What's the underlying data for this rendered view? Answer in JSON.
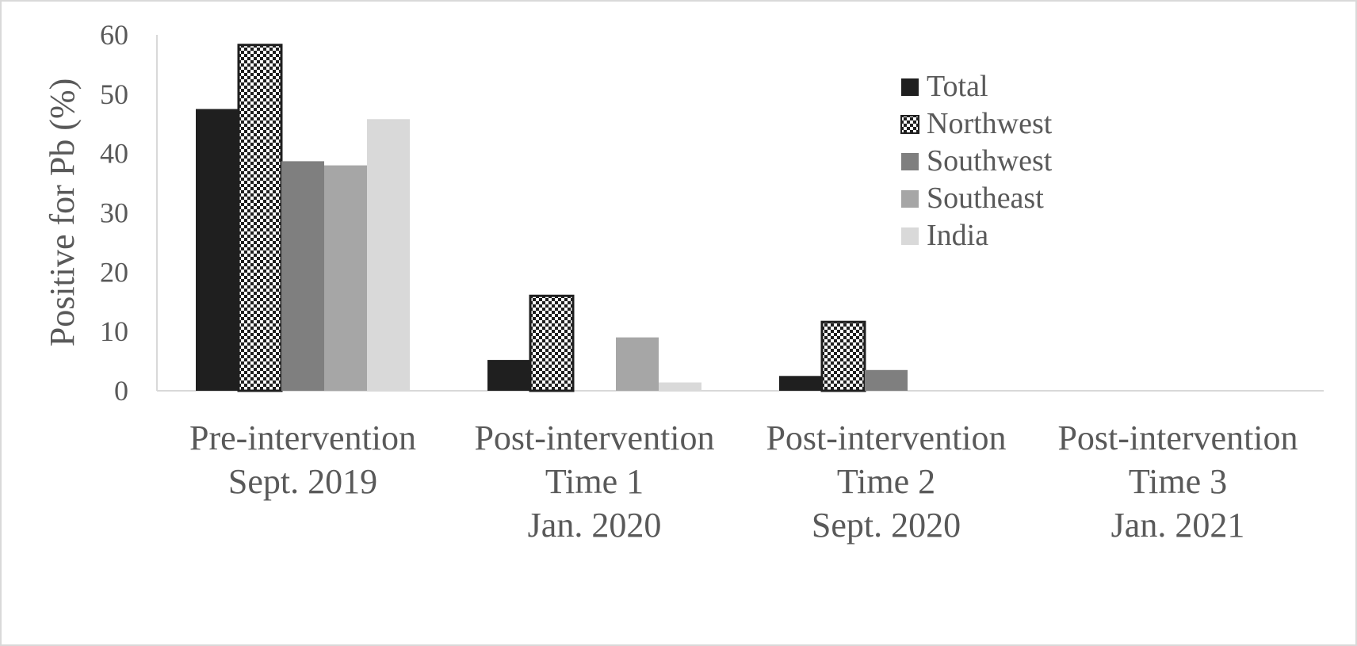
{
  "chart_data": {
    "type": "bar",
    "ylabel": "Positive for Pb (%)",
    "xlabel": "",
    "ylim": [
      0,
      60
    ],
    "yticks": [
      0,
      10,
      20,
      30,
      40,
      50,
      60
    ],
    "categories": [
      [
        "Pre-intervention",
        "Sept. 2019"
      ],
      [
        "Post-intervention",
        "Time 1",
        "Jan. 2020"
      ],
      [
        "Post-intervention",
        "Time 2",
        "Sept. 2020"
      ],
      [
        "Post-intervention",
        "Time 3",
        "Jan. 2021"
      ]
    ],
    "series": [
      {
        "name": "Total",
        "values": [
          47.5,
          5.2,
          2.5,
          0
        ],
        "color": "#1f1f1f",
        "pattern": "solid"
      },
      {
        "name": "Northwest",
        "values": [
          58.3,
          16.0,
          11.6,
          0
        ],
        "color": "#1f1f1f",
        "pattern": "checker"
      },
      {
        "name": "Southwest",
        "values": [
          38.7,
          0,
          3.5,
          0
        ],
        "color": "#7f7f7f",
        "pattern": "solid"
      },
      {
        "name": "Southeast",
        "values": [
          38.0,
          9.0,
          0,
          0
        ],
        "color": "#a6a6a6",
        "pattern": "solid"
      },
      {
        "name": "India",
        "values": [
          45.8,
          1.4,
          0,
          0
        ],
        "color": "#d9d9d9",
        "pattern": "solid"
      }
    ],
    "legend_position": "top-right",
    "grid": false
  }
}
